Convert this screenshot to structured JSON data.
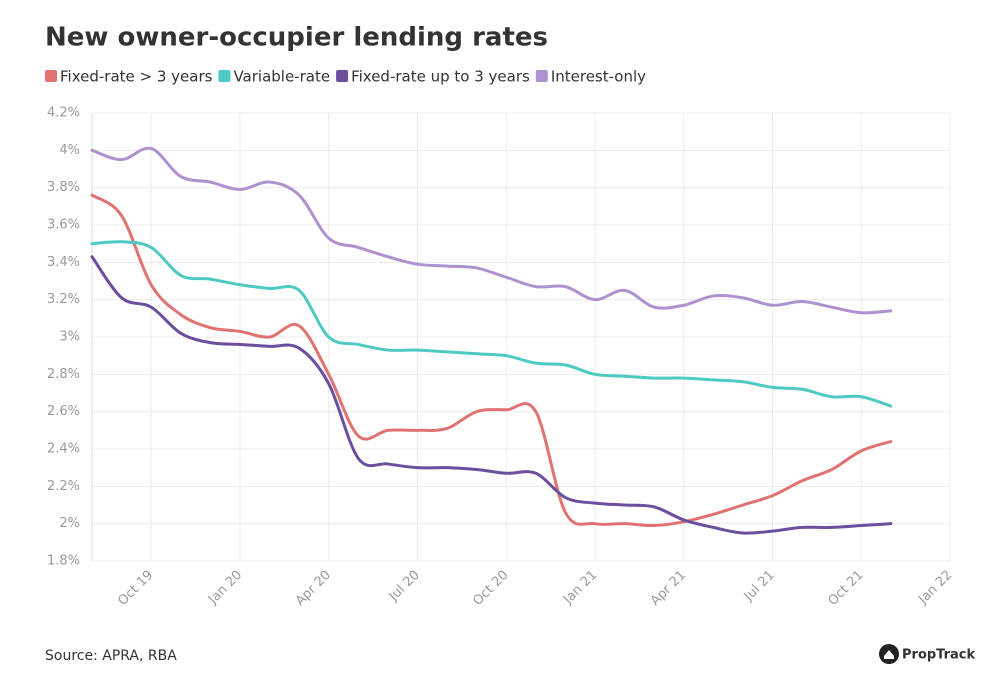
{
  "chart_data": {
    "type": "line",
    "title": "New owner-occupier lending rates",
    "source": "Source: APRA, RBA",
    "brand": "PropTrack",
    "categories": [
      null,
      null,
      "Oct 19",
      null,
      null,
      "Jan 20",
      null,
      null,
      "Apr 20",
      null,
      null,
      "Jul 20",
      null,
      null,
      "Oct 20",
      null,
      null,
      "Jan 21",
      null,
      null,
      "Apr 21",
      null,
      null,
      "Jul 21",
      null,
      null,
      "Oct 21",
      null,
      null,
      "Jan 22"
    ],
    "series": [
      {
        "name": "Fixed-rate > 3 years",
        "color": "#e07272",
        "values": [
          3.76,
          3.65,
          3.28,
          3.12,
          3.05,
          3.03,
          3.0,
          3.06,
          2.8,
          2.47,
          2.5,
          2.5,
          2.51,
          2.6,
          2.61,
          2.6,
          2.06,
          2.0,
          2.0,
          1.99,
          2.01,
          2.05,
          2.1,
          2.15,
          2.23,
          2.29,
          2.39,
          2.44,
          null,
          null
        ]
      },
      {
        "name": "Variable-rate",
        "color": "#4ecac2",
        "values": [
          3.5,
          3.51,
          3.48,
          3.33,
          3.31,
          3.28,
          3.26,
          3.25,
          3.0,
          2.96,
          2.93,
          2.93,
          2.92,
          2.91,
          2.9,
          2.86,
          2.85,
          2.8,
          2.79,
          2.78,
          2.78,
          2.77,
          2.76,
          2.73,
          2.72,
          2.68,
          2.68,
          2.63,
          null,
          null
        ]
      },
      {
        "name": "Fixed-rate up to 3 years",
        "color": "#6b4e9e",
        "values": [
          3.43,
          3.21,
          3.16,
          3.02,
          2.97,
          2.96,
          2.95,
          2.94,
          2.75,
          2.35,
          2.32,
          2.3,
          2.3,
          2.29,
          2.27,
          2.27,
          2.14,
          2.11,
          2.1,
          2.09,
          2.02,
          1.98,
          1.95,
          1.96,
          1.98,
          1.98,
          1.99,
          2.0,
          null,
          null
        ]
      },
      {
        "name": "Interest-only",
        "color": "#ae92d0",
        "values": [
          4.0,
          3.95,
          4.01,
          3.86,
          3.83,
          3.79,
          3.83,
          3.76,
          3.53,
          3.48,
          3.43,
          3.39,
          3.38,
          3.37,
          3.32,
          3.27,
          3.27,
          3.2,
          3.25,
          3.16,
          3.17,
          3.22,
          3.21,
          3.17,
          3.19,
          3.16,
          3.13,
          3.14,
          null,
          null
        ]
      }
    ],
    "ylim": [
      1.8,
      4.2
    ],
    "yticks": [
      {
        "value": 1.8,
        "label": "1.8%"
      },
      {
        "value": 2,
        "label": "2%"
      },
      {
        "value": 2.2,
        "label": "2.2%"
      },
      {
        "value": 2.4,
        "label": "2.4%"
      },
      {
        "value": 2.6,
        "label": "2.6%"
      },
      {
        "value": 2.8,
        "label": "2.8%"
      },
      {
        "value": 3,
        "label": "3%"
      },
      {
        "value": 3.2,
        "label": "3.2%"
      },
      {
        "value": 3.4,
        "label": "3.4%"
      },
      {
        "value": 3.6,
        "label": "3.6%"
      },
      {
        "value": 3.8,
        "label": "3.8%"
      },
      {
        "value": 4,
        "label": "4%"
      },
      {
        "value": 4.2,
        "label": "4.2%"
      }
    ],
    "grid": true
  }
}
